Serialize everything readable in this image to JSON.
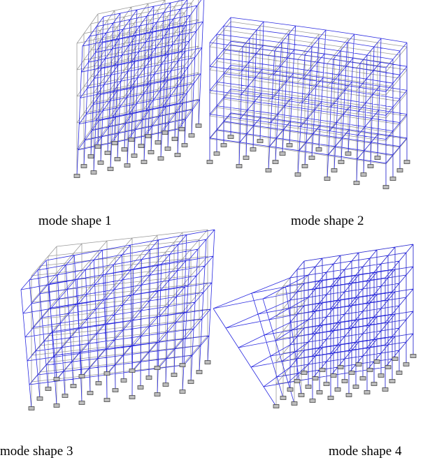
{
  "panels": [
    {
      "caption": "mode shape 1"
    },
    {
      "caption": "mode shape 2"
    },
    {
      "caption": "mode shape 3"
    },
    {
      "caption": "mode shape 4"
    }
  ]
}
